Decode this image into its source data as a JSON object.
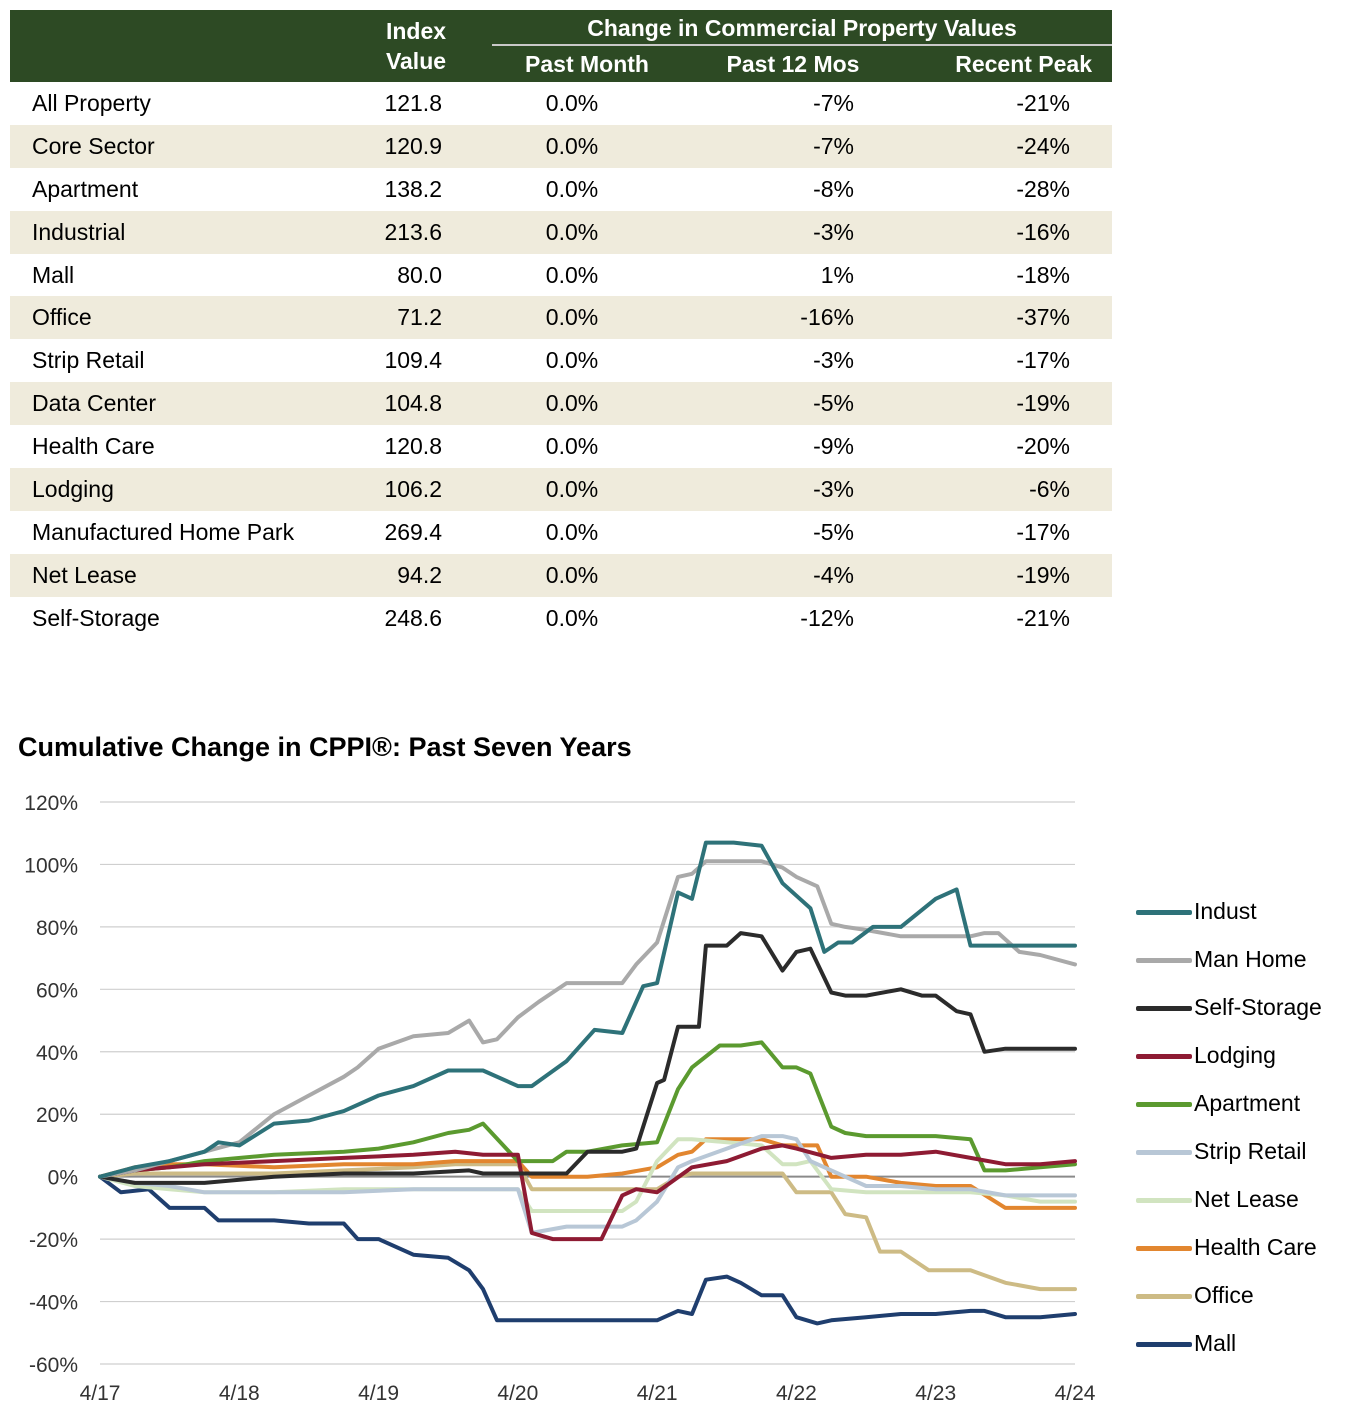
{
  "table": {
    "header": {
      "index_line1": "Index",
      "index_line2": "Value",
      "group": "Change in Commercial Property Values",
      "past_month": "Past Month",
      "past_12": "Past 12 Mos",
      "recent_peak": "Recent Peak"
    },
    "rows": [
      {
        "name": "All Property",
        "index": "121.8",
        "past_month": "0.0%",
        "past_12": "-7%",
        "recent_peak": "-21%"
      },
      {
        "name": "Core Sector",
        "index": "120.9",
        "past_month": "0.0%",
        "past_12": "-7%",
        "recent_peak": "-24%"
      },
      {
        "name": "Apartment",
        "index": "138.2",
        "past_month": "0.0%",
        "past_12": "-8%",
        "recent_peak": "-28%"
      },
      {
        "name": "Industrial",
        "index": "213.6",
        "past_month": "0.0%",
        "past_12": "-3%",
        "recent_peak": "-16%"
      },
      {
        "name": "Mall",
        "index": "80.0",
        "past_month": "0.0%",
        "past_12": "1%",
        "recent_peak": "-18%"
      },
      {
        "name": "Office",
        "index": "71.2",
        "past_month": "0.0%",
        "past_12": "-16%",
        "recent_peak": "-37%"
      },
      {
        "name": "Strip Retail",
        "index": "109.4",
        "past_month": "0.0%",
        "past_12": "-3%",
        "recent_peak": "-17%"
      },
      {
        "name": "Data Center",
        "index": "104.8",
        "past_month": "0.0%",
        "past_12": "-5%",
        "recent_peak": "-19%"
      },
      {
        "name": "Health Care",
        "index": "120.8",
        "past_month": "0.0%",
        "past_12": "-9%",
        "recent_peak": "-20%"
      },
      {
        "name": "Lodging",
        "index": "106.2",
        "past_month": "0.0%",
        "past_12": "-3%",
        "recent_peak": "-6%"
      },
      {
        "name": "Manufactured Home Park",
        "index": "269.4",
        "past_month": "0.0%",
        "past_12": "-5%",
        "recent_peak": "-17%"
      },
      {
        "name": "Net Lease",
        "index": "94.2",
        "past_month": "0.0%",
        "past_12": "-4%",
        "recent_peak": "-19%"
      },
      {
        "name": "Self-Storage",
        "index": "248.6",
        "past_month": "0.0%",
        "past_12": "-12%",
        "recent_peak": "-21%"
      }
    ]
  },
  "chart_data": {
    "type": "line",
    "title": "Cumulative Change in CPPI®: Past Seven Years",
    "ylim": [
      -60,
      120
    ],
    "yticks": [
      120,
      100,
      80,
      60,
      40,
      20,
      0,
      -20,
      -40,
      -60
    ],
    "ytick_labels": [
      "120%",
      "100%",
      "80%",
      "60%",
      "40%",
      "20%",
      "0%",
      "-20%",
      "-40%",
      "-60%"
    ],
    "xlim": [
      2017.25,
      2024.25
    ],
    "xticks": [
      2017.25,
      2018.25,
      2019.25,
      2020.25,
      2021.25,
      2022.25,
      2023.25,
      2024.25
    ],
    "xtick_labels": [
      "4/17",
      "4/18",
      "4/19",
      "4/20",
      "4/21",
      "4/22",
      "4/23",
      "4/24"
    ],
    "grid": true,
    "legend_position": "right",
    "series": [
      {
        "name": "Indust",
        "color": "#2e7279",
        "x": [
          2017.25,
          2017.5,
          2017.75,
          2018.0,
          2018.1,
          2018.25,
          2018.5,
          2018.75,
          2019.0,
          2019.25,
          2019.5,
          2019.75,
          2020.0,
          2020.25,
          2020.35,
          2020.6,
          2020.8,
          2021.0,
          2021.15,
          2021.25,
          2021.4,
          2021.5,
          2021.6,
          2021.7,
          2021.8,
          2022.0,
          2022.15,
          2022.25,
          2022.35,
          2022.45,
          2022.55,
          2022.65,
          2022.8,
          2023.0,
          2023.25,
          2023.4,
          2023.5,
          2023.6,
          2023.75,
          2024.0,
          2024.25
        ],
        "y": [
          0,
          3,
          5,
          8,
          11,
          10,
          17,
          18,
          21,
          26,
          29,
          34,
          34,
          29,
          29,
          37,
          47,
          46,
          61,
          62,
          91,
          89,
          107,
          107,
          107,
          106,
          94,
          90,
          86,
          72,
          75,
          75,
          80,
          80,
          89,
          92,
          74,
          74,
          74,
          74,
          74
        ]
      },
      {
        "name": "Man Home",
        "color": "#a9a9a9",
        "x": [
          2017.25,
          2017.5,
          2017.75,
          2018.0,
          2018.25,
          2018.5,
          2018.75,
          2019.0,
          2019.1,
          2019.25,
          2019.5,
          2019.75,
          2019.9,
          2020.0,
          2020.1,
          2020.25,
          2020.4,
          2020.6,
          2020.75,
          2021.0,
          2021.1,
          2021.25,
          2021.4,
          2021.5,
          2021.6,
          2021.8,
          2022.0,
          2022.15,
          2022.25,
          2022.4,
          2022.5,
          2022.6,
          2022.75,
          2023.0,
          2023.25,
          2023.5,
          2023.6,
          2023.7,
          2023.85,
          2024.0,
          2024.25
        ],
        "y": [
          0,
          2,
          5,
          8,
          11,
          20,
          26,
          32,
          35,
          41,
          45,
          46,
          50,
          43,
          44,
          51,
          56,
          62,
          62,
          62,
          68,
          75,
          96,
          97,
          101,
          101,
          101,
          99,
          96,
          93,
          81,
          80,
          79,
          77,
          77,
          77,
          78,
          78,
          72,
          71,
          68
        ]
      },
      {
        "name": "Self-Storage",
        "color": "#2b2b2b",
        "x": [
          2017.25,
          2017.5,
          2017.75,
          2018.0,
          2018.5,
          2019.0,
          2019.5,
          2019.9,
          2020.0,
          2020.25,
          2020.5,
          2020.6,
          2020.75,
          2021.0,
          2021.1,
          2021.25,
          2021.3,
          2021.4,
          2021.55,
          2021.6,
          2021.75,
          2021.85,
          2022.0,
          2022.15,
          2022.25,
          2022.35,
          2022.5,
          2022.6,
          2022.75,
          2023.0,
          2023.15,
          2023.25,
          2023.4,
          2023.5,
          2023.6,
          2023.75,
          2024.0,
          2024.25
        ],
        "y": [
          0,
          -2,
          -2,
          -2,
          0,
          1,
          1,
          2,
          1,
          1,
          1,
          1,
          8,
          8,
          9,
          30,
          31,
          48,
          48,
          74,
          74,
          78,
          77,
          66,
          72,
          73,
          59,
          58,
          58,
          60,
          58,
          58,
          53,
          52,
          40,
          41,
          41,
          41
        ]
      },
      {
        "name": "Lodging",
        "color": "#8e1b33",
        "x": [
          2017.25,
          2017.5,
          2017.75,
          2018.0,
          2018.5,
          2019.0,
          2019.5,
          2019.8,
          2020.0,
          2020.25,
          2020.35,
          2020.5,
          2020.75,
          2020.85,
          2021.0,
          2021.1,
          2021.25,
          2021.5,
          2021.75,
          2022.0,
          2022.15,
          2022.25,
          2022.5,
          2022.75,
          2023.0,
          2023.25,
          2023.5,
          2023.75,
          2024.0,
          2024.25
        ],
        "y": [
          0,
          2,
          3,
          4,
          5,
          6,
          7,
          8,
          7,
          7,
          -18,
          -20,
          -20,
          -20,
          -6,
          -4,
          -5,
          3,
          5,
          9,
          10,
          9,
          6,
          7,
          7,
          8,
          6,
          4,
          4,
          5
        ]
      },
      {
        "name": "Apartment",
        "color": "#5b9a2f",
        "x": [
          2017.25,
          2017.5,
          2017.75,
          2018.0,
          2018.5,
          2019.0,
          2019.25,
          2019.5,
          2019.75,
          2019.9,
          2020.0,
          2020.25,
          2020.5,
          2020.6,
          2020.75,
          2021.0,
          2021.25,
          2021.4,
          2021.5,
          2021.7,
          2021.85,
          2022.0,
          2022.15,
          2022.25,
          2022.35,
          2022.5,
          2022.6,
          2022.75,
          2023.0,
          2023.25,
          2023.5,
          2023.6,
          2023.75,
          2024.0,
          2024.25
        ],
        "y": [
          0,
          2,
          3,
          5,
          7,
          8,
          9,
          11,
          14,
          15,
          17,
          5,
          5,
          8,
          8,
          10,
          11,
          28,
          35,
          42,
          42,
          43,
          35,
          35,
          33,
          16,
          14,
          13,
          13,
          13,
          12,
          2,
          2,
          3,
          4
        ]
      },
      {
        "name": "Strip Retail",
        "color": "#b8c7d6",
        "x": [
          2017.25,
          2017.5,
          2017.75,
          2018.0,
          2018.5,
          2019.0,
          2019.5,
          2019.8,
          2020.0,
          2020.25,
          2020.35,
          2020.6,
          2020.75,
          2021.0,
          2021.1,
          2021.25,
          2021.4,
          2021.5,
          2021.75,
          2022.0,
          2022.15,
          2022.25,
          2022.35,
          2022.5,
          2022.75,
          2023.0,
          2023.25,
          2023.5,
          2023.75,
          2024.0,
          2024.25
        ],
        "y": [
          0,
          -2,
          -3,
          -5,
          -5,
          -5,
          -4,
          -4,
          -4,
          -4,
          -18,
          -16,
          -16,
          -16,
          -14,
          -8,
          3,
          5,
          9,
          13,
          13,
          12,
          5,
          2,
          -3,
          -3,
          -4,
          -4,
          -6,
          -6,
          -6
        ]
      },
      {
        "name": "Net Lease",
        "color": "#d1e4c0",
        "x": [
          2017.25,
          2017.5,
          2017.75,
          2018.0,
          2018.5,
          2019.0,
          2019.5,
          2019.8,
          2020.0,
          2020.25,
          2020.35,
          2020.6,
          2020.75,
          2021.0,
          2021.1,
          2021.25,
          2021.4,
          2021.5,
          2021.75,
          2022.0,
          2022.15,
          2022.25,
          2022.35,
          2022.5,
          2022.75,
          2023.0,
          2023.25,
          2023.5,
          2023.75,
          2024.0,
          2024.25
        ],
        "y": [
          0,
          -3,
          -4,
          -5,
          -5,
          -4,
          -4,
          -4,
          -4,
          -4,
          -11,
          -11,
          -11,
          -11,
          -8,
          5,
          12,
          12,
          11,
          10,
          4,
          4,
          5,
          -4,
          -5,
          -5,
          -5,
          -5,
          -6,
          -8,
          -8
        ]
      },
      {
        "name": "Health Care",
        "color": "#e2862f",
        "x": [
          2017.25,
          2017.5,
          2017.75,
          2018.0,
          2018.5,
          2019.0,
          2019.5,
          2019.8,
          2020.0,
          2020.25,
          2020.35,
          2020.5,
          2020.75,
          2021.0,
          2021.25,
          2021.4,
          2021.5,
          2021.6,
          2021.75,
          2022.0,
          2022.15,
          2022.25,
          2022.4,
          2022.5,
          2022.75,
          2023.0,
          2023.25,
          2023.5,
          2023.75,
          2024.0,
          2024.25
        ],
        "y": [
          0,
          3,
          4,
          4,
          3,
          4,
          4,
          5,
          5,
          5,
          0,
          0,
          0,
          1,
          3,
          7,
          8,
          12,
          12,
          12,
          10,
          10,
          10,
          0,
          0,
          -2,
          -3,
          -3,
          -10,
          -10,
          -10
        ]
      },
      {
        "name": "Office",
        "color": "#cdbb85",
        "x": [
          2017.25,
          2017.5,
          2017.75,
          2018.0,
          2018.5,
          2019.0,
          2019.5,
          2019.8,
          2020.0,
          2020.25,
          2020.35,
          2020.5,
          2020.75,
          2021.0,
          2021.25,
          2021.4,
          2021.5,
          2021.75,
          2022.0,
          2022.15,
          2022.25,
          2022.4,
          2022.5,
          2022.6,
          2022.75,
          2022.85,
          2023.0,
          2023.2,
          2023.35,
          2023.5,
          2023.75,
          2024.0,
          2024.25
        ],
        "y": [
          0,
          1,
          1,
          1,
          1,
          2,
          3,
          4,
          4,
          4,
          -4,
          -4,
          -4,
          -4,
          -4,
          0,
          1,
          1,
          1,
          1,
          -5,
          -5,
          -5,
          -12,
          -13,
          -24,
          -24,
          -30,
          -30,
          -30,
          -34,
          -36,
          -36
        ]
      },
      {
        "name": "Mall",
        "color": "#1f3e6e",
        "x": [
          2017.25,
          2017.4,
          2017.6,
          2017.75,
          2017.9,
          2018.0,
          2018.1,
          2018.25,
          2018.5,
          2018.75,
          2019.0,
          2019.1,
          2019.25,
          2019.5,
          2019.75,
          2019.9,
          2020.0,
          2020.1,
          2020.25,
          2020.5,
          2020.75,
          2021.0,
          2021.25,
          2021.4,
          2021.5,
          2021.6,
          2021.75,
          2021.85,
          2022.0,
          2022.15,
          2022.25,
          2022.4,
          2022.5,
          2022.75,
          2023.0,
          2023.25,
          2023.5,
          2023.6,
          2023.75,
          2024.0,
          2024.25
        ],
        "y": [
          0,
          -5,
          -4,
          -10,
          -10,
          -10,
          -14,
          -14,
          -14,
          -15,
          -15,
          -20,
          -20,
          -25,
          -26,
          -30,
          -36,
          -46,
          -46,
          -46,
          -46,
          -46,
          -46,
          -43,
          -44,
          -33,
          -32,
          -34,
          -38,
          -38,
          -45,
          -47,
          -46,
          -45,
          -44,
          -44,
          -43,
          -43,
          -45,
          -45,
          -44
        ]
      }
    ]
  }
}
